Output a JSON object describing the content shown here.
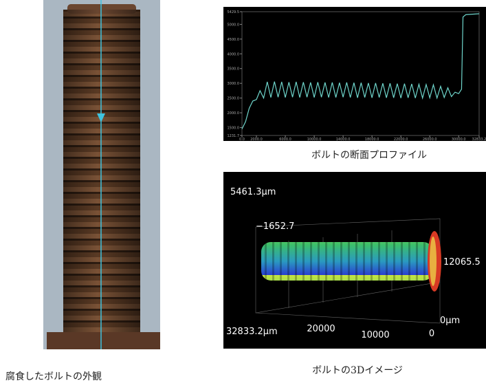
{
  "photo": {
    "caption": "腐食したボルトの外観"
  },
  "chart_data": {
    "type": "line",
    "caption": "ボルトの断面プロファイル",
    "x": [
      0,
      500,
      1000,
      1500,
      2000,
      2500,
      3000,
      3500,
      4000,
      4500,
      5000,
      5500,
      6000,
      6500,
      7000,
      7500,
      8000,
      8500,
      9000,
      9500,
      10000,
      10500,
      11000,
      11500,
      12000,
      12500,
      13000,
      13500,
      14000,
      14500,
      15000,
      15500,
      16000,
      16500,
      17000,
      17500,
      18000,
      18500,
      19000,
      19500,
      20000,
      20500,
      21000,
      21500,
      22000,
      22500,
      23000,
      23500,
      24000,
      24500,
      25000,
      25500,
      26000,
      26500,
      27000,
      27500,
      28000,
      28500,
      29000,
      29500,
      30000,
      30400,
      30600,
      31000,
      32833.2
    ],
    "series": [
      {
        "color": "#6fd6cc",
        "values": [
          1450,
          1700,
          2150,
          2400,
          2450,
          2750,
          2500,
          3050,
          2520,
          3060,
          2530,
          3050,
          2520,
          3040,
          2530,
          3050,
          2520,
          3040,
          2530,
          3030,
          2520,
          3040,
          2530,
          3030,
          2520,
          3030,
          2520,
          3020,
          2530,
          3030,
          2520,
          3020,
          2510,
          3020,
          2520,
          3010,
          2510,
          3010,
          2520,
          3000,
          2510,
          3000,
          2510,
          2990,
          2500,
          2990,
          2510,
          2980,
          2500,
          2970,
          2500,
          2960,
          2510,
          2950,
          2500,
          2900,
          2520,
          2850,
          2550,
          2700,
          2650,
          2800,
          5250,
          5330,
          5360
        ]
      }
    ],
    "xlim": [
      0,
      32833.2
    ],
    "ylim": [
      1231.7,
      5429.5
    ],
    "xticks": [
      {
        "value": 0,
        "label": "0.0"
      },
      {
        "value": 2000,
        "label": "2000.0"
      },
      {
        "value": 6000,
        "label": "6000.0"
      },
      {
        "value": 10000,
        "label": "10000.0"
      },
      {
        "value": 14000,
        "label": "14000.0"
      },
      {
        "value": 18000,
        "label": "18000.0"
      },
      {
        "value": 22000,
        "label": "22000.0"
      },
      {
        "value": 26000,
        "label": "26000.0"
      },
      {
        "value": 30000,
        "label": "30000.0"
      },
      32833.2
    ],
    "yticks": [
      1231.7,
      {
        "value": 1500,
        "label": "1500.0"
      },
      {
        "value": 2000,
        "label": "2000.0"
      },
      {
        "value": 2500,
        "label": "2500.0"
      },
      {
        "value": 3000,
        "label": "3000.0"
      },
      {
        "value": 3500,
        "label": "3500.0"
      },
      {
        "value": 4000,
        "label": "4000.0"
      },
      {
        "value": 4500,
        "label": "4500.0"
      },
      {
        "value": 5000,
        "label": "5000.0"
      },
      5429.5
    ]
  },
  "image_3d": {
    "caption": "ボルトの3Dイメージ",
    "labels": [
      "5461.3μm",
      "−1652.7",
      "12065.5",
      "32833.2μm",
      "20000",
      "10000",
      "0",
      "0μm"
    ]
  }
}
